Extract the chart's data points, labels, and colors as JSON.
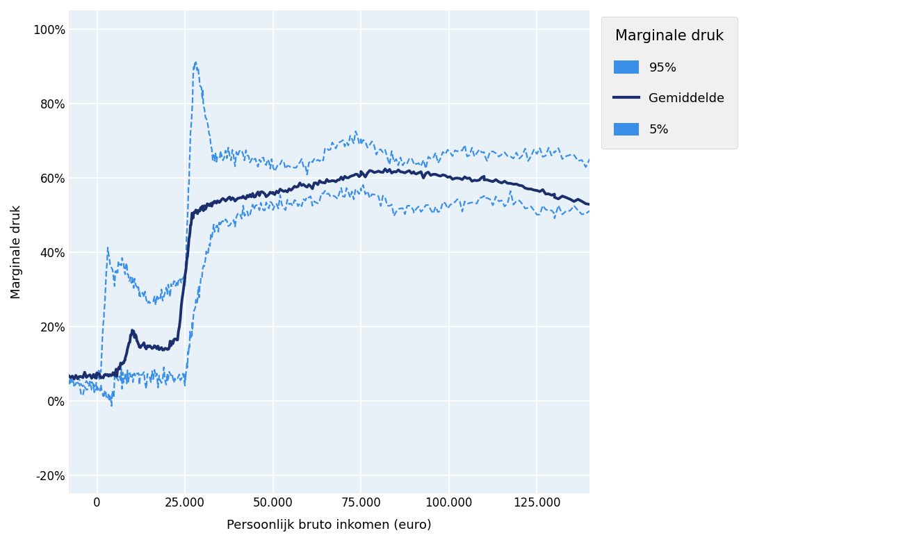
{
  "xlabel": "Persoonlijk bruto inkomen (euro)",
  "ylabel": "Marginale druk",
  "legend_title": "Marginale druk",
  "legend_labels": [
    "95%",
    "Gemiddelde",
    "5%"
  ],
  "plot_bg_color": "#e8f0f8",
  "fig_bg_color": "#ffffff",
  "grid_color": "#ffffff",
  "mean_color": "#1b2f6e",
  "p95_color": "#3a8fe8",
  "p5_color": "#3a8fe8",
  "xlim": [
    -8000,
    140000
  ],
  "ylim": [
    -0.25,
    1.05
  ],
  "xticks": [
    0,
    25000,
    50000,
    75000,
    100000,
    125000
  ],
  "yticks": [
    -0.2,
    0.0,
    0.2,
    0.4,
    0.6,
    0.8,
    1.0
  ],
  "mean_lw": 2.8,
  "dashed_lw": 1.6
}
